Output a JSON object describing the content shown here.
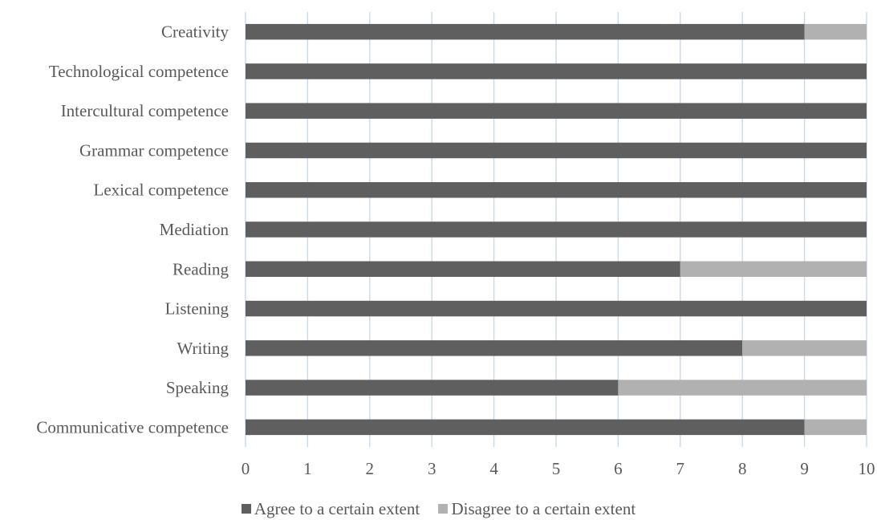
{
  "chart_data": {
    "type": "bar",
    "orientation": "horizontal",
    "stacked": true,
    "title": "",
    "xlabel": "",
    "ylabel": "",
    "xlim": [
      0,
      10
    ],
    "x_ticks": [
      "0",
      "1",
      "2",
      "3",
      "4",
      "5",
      "6",
      "7",
      "8",
      "9",
      "10"
    ],
    "grid": "vertical",
    "legend_position": "bottom",
    "categories": [
      "Creativity",
      "Technological competence",
      "Intercultural competence",
      "Grammar competence",
      "Lexical competence",
      "Mediation",
      "Reading",
      "Listening",
      "Writing",
      "Speaking",
      "Communicative competence"
    ],
    "series": [
      {
        "name": "Agree to a certain extent",
        "color": "#5f5f5f",
        "values": [
          9,
          10,
          10,
          10,
          10,
          10,
          7,
          10,
          8,
          6,
          9
        ]
      },
      {
        "name": "Disagree to a certain extent",
        "color": "#b1b1b1",
        "values": [
          1,
          0,
          0,
          0,
          0,
          0,
          3,
          0,
          2,
          4,
          1
        ]
      }
    ],
    "gridline_color": "#c9d9ea"
  }
}
